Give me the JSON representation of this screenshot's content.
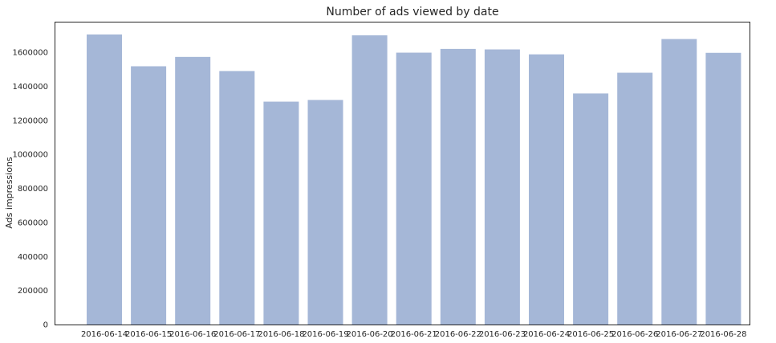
{
  "chart_data": {
    "type": "bar",
    "title": "Number of ads viewed by date",
    "xlabel": "",
    "ylabel": "Ads impressions",
    "categories": [
      "2016-06-14",
      "2016-06-15",
      "2016-06-16",
      "2016-06-17",
      "2016-06-18",
      "2016-06-19",
      "2016-06-20",
      "2016-06-21",
      "2016-06-22",
      "2016-06-23",
      "2016-06-24",
      "2016-06-25",
      "2016-06-26",
      "2016-06-27",
      "2016-06-28"
    ],
    "values": [
      1705000,
      1518000,
      1573000,
      1490000,
      1310000,
      1320000,
      1700000,
      1598000,
      1620000,
      1617000,
      1588000,
      1358000,
      1480000,
      1678000,
      1597000
    ],
    "ylim": [
      0,
      1780000
    ],
    "yticks": [
      0,
      200000,
      400000,
      600000,
      800000,
      1000000,
      1200000,
      1400000,
      1600000
    ],
    "ytick_labels": [
      "0",
      "200000",
      "400000",
      "600000",
      "800000",
      "1000000",
      "1200000",
      "1400000",
      "1600000"
    ],
    "bar_color": "#a5b7d7",
    "grid": false,
    "legend": "none"
  }
}
